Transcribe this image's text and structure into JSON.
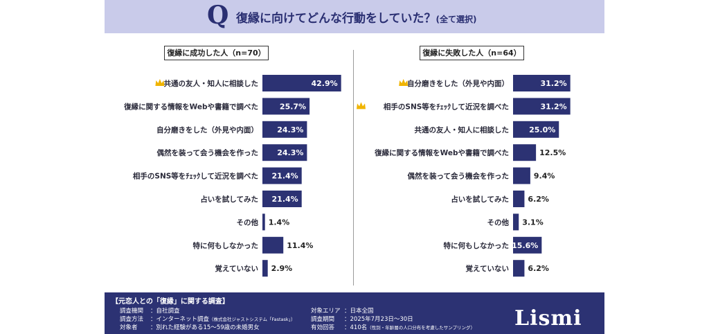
{
  "header": {
    "q_mark": "Q",
    "title": "復縁に向けてどんな行動をしていた？",
    "title_note": "(全て選択)"
  },
  "colors": {
    "bar": "#2c3273",
    "header_bg": "#c9cbea",
    "footer_bg": "#2c3273",
    "crown": "#f0b400"
  },
  "chart_data": [
    {
      "type": "bar",
      "orientation": "horizontal",
      "title": "復縁に成功した人（n=70）",
      "categories": [
        "共通の友人・知人に相談した",
        "復縁に関する情報をWebや書籍で調べた",
        "自分磨きをした（外見や内面）",
        "偶然を装って会う機会を作った",
        "相手のSNS等をﾁｪｯｸして近況を調べた",
        "占いを試してみた",
        "その他",
        "特に何もしなかった",
        "覚えていない"
      ],
      "values": [
        42.9,
        25.7,
        24.3,
        24.3,
        21.4,
        21.4,
        1.4,
        11.4,
        2.9
      ],
      "labels": [
        "42.9%",
        "25.7%",
        "24.3%",
        "24.3%",
        "21.4%",
        "21.4%",
        "1.4%",
        "11.4%",
        "2.9%"
      ],
      "crowned": [
        0
      ]
    },
    {
      "type": "bar",
      "orientation": "horizontal",
      "title": "復縁に失敗した人（n=64）",
      "categories": [
        "自分磨きをした（外見や内面）",
        "相手のSNS等をﾁｪｯｸして近況を調べた",
        "共通の友人・知人に相談した",
        "復縁に関する情報をWebや書籍で調べた",
        "偶然を装って会う機会を作った",
        "占いを試してみた",
        "その他",
        "特に何もしなかった",
        "覚えていない"
      ],
      "values": [
        31.2,
        31.2,
        25.0,
        12.5,
        9.4,
        6.2,
        3.1,
        15.6,
        6.2
      ],
      "labels": [
        "31.2%",
        "31.2%",
        "25.0%",
        "12.5%",
        "9.4%",
        "6.2%",
        "3.1%",
        "15.6%",
        "6.2%"
      ],
      "crowned": [
        0,
        1
      ]
    }
  ],
  "footer": {
    "title": "【元恋人との「復縁」に関する調査】",
    "rows_left": [
      {
        "key": "調査機関",
        "value": "：自社調査",
        "note": ""
      },
      {
        "key": "調査方法",
        "value": "：インターネット調査",
        "note": "（株式会社ジャストシステム「Fastask」）"
      },
      {
        "key": "対象者",
        "value": "：別れた経験がある15～59歳の未婚男女",
        "note": ""
      }
    ],
    "rows_right": [
      {
        "key": "対象エリア",
        "value": "：日本全国",
        "note": ""
      },
      {
        "key": "調査期間",
        "value": "：2025年7月23日～30日",
        "note": ""
      },
      {
        "key": "有効回答",
        "value": "：410名",
        "note": "（性別・年齢層の人口分布を考慮したサンプリング）"
      }
    ],
    "logo": "Lismi"
  }
}
